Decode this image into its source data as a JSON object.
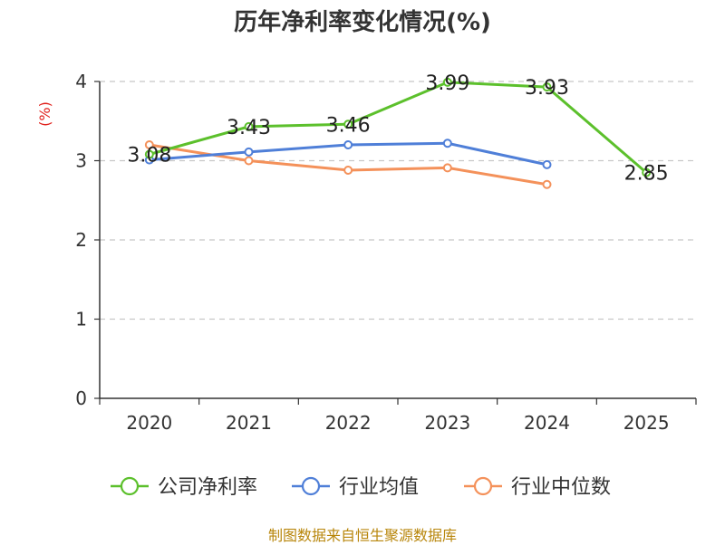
{
  "chart_data": {
    "type": "line",
    "title": "历年净利率变化情况(%)",
    "ylabel": "(%)",
    "xlabel": "",
    "categories": [
      "2020",
      "2021",
      "2022",
      "2023",
      "2024",
      "2025"
    ],
    "ylim": [
      0,
      4
    ],
    "yticks": [
      "0",
      "1",
      "2",
      "3",
      "4"
    ],
    "grid": true,
    "legend_position": "bottom",
    "series": [
      {
        "name": "公司净利率",
        "color": "#5cc02c",
        "labels": true,
        "values": [
          3.08,
          3.43,
          3.46,
          3.99,
          3.93,
          2.85
        ],
        "label_text": [
          "3.08",
          "3.43",
          "3.46",
          "3.99",
          "3.93",
          "2.85"
        ]
      },
      {
        "name": "行业均值",
        "color": "#4f7fd8",
        "labels": false,
        "values": [
          3.01,
          3.11,
          3.2,
          3.22,
          2.95,
          null
        ]
      },
      {
        "name": "行业中位数",
        "color": "#f4915a",
        "labels": false,
        "values": [
          3.2,
          3.0,
          2.88,
          2.91,
          2.7,
          null
        ]
      }
    ]
  },
  "source": "制图数据来自恒生聚源数据库"
}
